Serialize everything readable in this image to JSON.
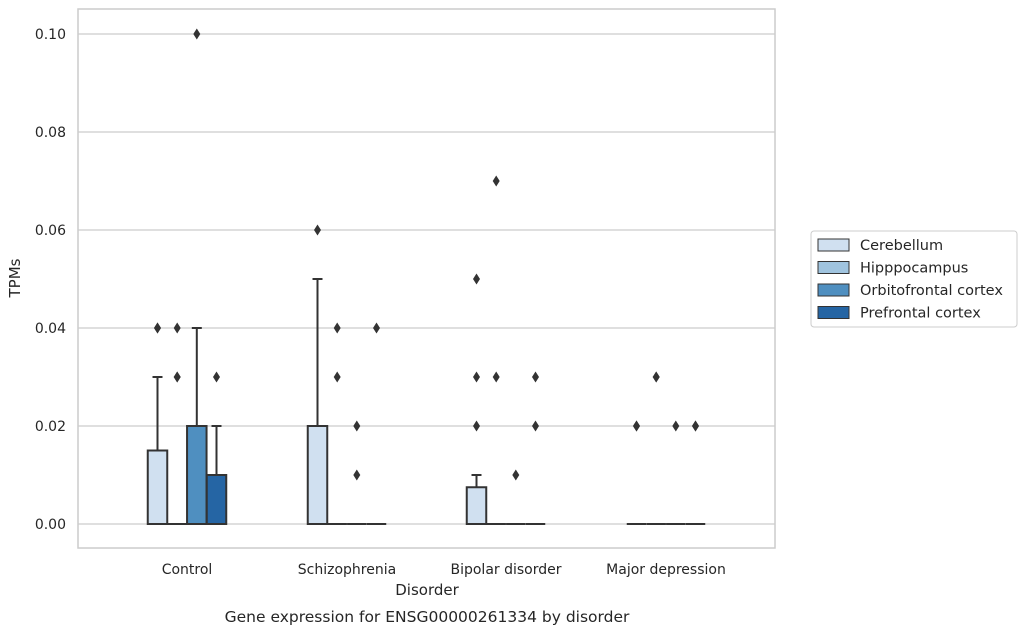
{
  "chart_data": {
    "type": "box",
    "title": "",
    "caption": "Gene expression for ENSG00000261334 by disorder",
    "xlabel": "Disorder",
    "ylabel": "TPMs",
    "ylim": [
      -0.005,
      0.105
    ],
    "yticks": [
      0.0,
      0.02,
      0.04,
      0.06,
      0.08,
      0.1
    ],
    "ytick_labels": [
      "0.00",
      "0.02",
      "0.04",
      "0.06",
      "0.08",
      "0.10"
    ],
    "grid": "horizontal",
    "legend_position": "right",
    "categories": [
      "Control",
      "Schizophrenia",
      "Bipolar disorder",
      "Major depression"
    ],
    "series": [
      {
        "name": "Cerebellum",
        "color": "#d0e0f0",
        "boxes": [
          {
            "q1": 0.0,
            "median": 0.0,
            "q3": 0.015,
            "whisker_low": 0.0,
            "whisker_high": 0.03,
            "outliers": [
              0.04,
              0.04
            ]
          },
          {
            "q1": 0.0,
            "median": 0.0,
            "q3": 0.02,
            "whisker_low": 0.0,
            "whisker_high": 0.05,
            "outliers": [
              0.06
            ]
          },
          {
            "q1": 0.0,
            "median": 0.0,
            "q3": 0.0075,
            "whisker_low": 0.0,
            "whisker_high": 0.01,
            "outliers": [
              0.02,
              0.03,
              0.05
            ]
          },
          {
            "q1": 0.0,
            "median": 0.0,
            "q3": 0.0,
            "whisker_low": 0.0,
            "whisker_high": 0.0,
            "outliers": [
              0.02,
              0.02
            ]
          }
        ]
      },
      {
        "name": "Hipppocampus",
        "color": "#a0c4df",
        "boxes": [
          {
            "q1": 0.0,
            "median": 0.0,
            "q3": 0.0,
            "whisker_low": 0.0,
            "whisker_high": 0.0,
            "outliers": [
              0.03,
              0.04,
              0.03
            ]
          },
          {
            "q1": 0.0,
            "median": 0.0,
            "q3": 0.0,
            "whisker_low": 0.0,
            "whisker_high": 0.0,
            "outliers": [
              0.03,
              0.04
            ]
          },
          {
            "q1": 0.0,
            "median": 0.0,
            "q3": 0.0,
            "whisker_low": 0.0,
            "whisker_high": 0.0,
            "outliers": [
              0.03,
              0.07
            ]
          },
          {
            "q1": 0.0,
            "median": 0.0,
            "q3": 0.0,
            "whisker_low": 0.0,
            "whisker_high": 0.0,
            "outliers": [
              0.03,
              0.03
            ]
          }
        ]
      },
      {
        "name": "Orbitofrontal cortex",
        "color": "#4f8fc0",
        "boxes": [
          {
            "q1": 0.0,
            "median": 0.0,
            "q3": 0.02,
            "whisker_low": 0.0,
            "whisker_high": 0.04,
            "outliers": [
              0.1
            ]
          },
          {
            "q1": 0.0,
            "median": 0.0,
            "q3": 0.0,
            "whisker_low": 0.0,
            "whisker_high": 0.0,
            "outliers": [
              0.01,
              0.02
            ]
          },
          {
            "q1": 0.0,
            "median": 0.0,
            "q3": 0.0,
            "whisker_low": 0.0,
            "whisker_high": 0.0,
            "outliers": [
              0.01
            ]
          },
          {
            "q1": 0.0,
            "median": 0.0,
            "q3": 0.0,
            "whisker_low": 0.0,
            "whisker_high": 0.0,
            "outliers": [
              0.02
            ]
          }
        ]
      },
      {
        "name": "Prefrontal cortex",
        "color": "#2565a4",
        "boxes": [
          {
            "q1": 0.0,
            "median": 0.0,
            "q3": 0.01,
            "whisker_low": 0.0,
            "whisker_high": 0.02,
            "outliers": [
              0.03
            ]
          },
          {
            "q1": 0.0,
            "median": 0.0,
            "q3": 0.0,
            "whisker_low": 0.0,
            "whisker_high": 0.0,
            "outliers": [
              0.04
            ]
          },
          {
            "q1": 0.0,
            "median": 0.0,
            "q3": 0.0,
            "whisker_low": 0.0,
            "whisker_high": 0.0,
            "outliers": [
              0.02,
              0.03
            ]
          },
          {
            "q1": 0.0,
            "median": 0.0,
            "q3": 0.0,
            "whisker_low": 0.0,
            "whisker_high": 0.0,
            "outliers": [
              0.02,
              0.02
            ]
          }
        ]
      }
    ],
    "colors": {
      "edge": "#333333",
      "grid": "#cccccc",
      "frame": "#cccccc",
      "text": "#262626"
    }
  }
}
